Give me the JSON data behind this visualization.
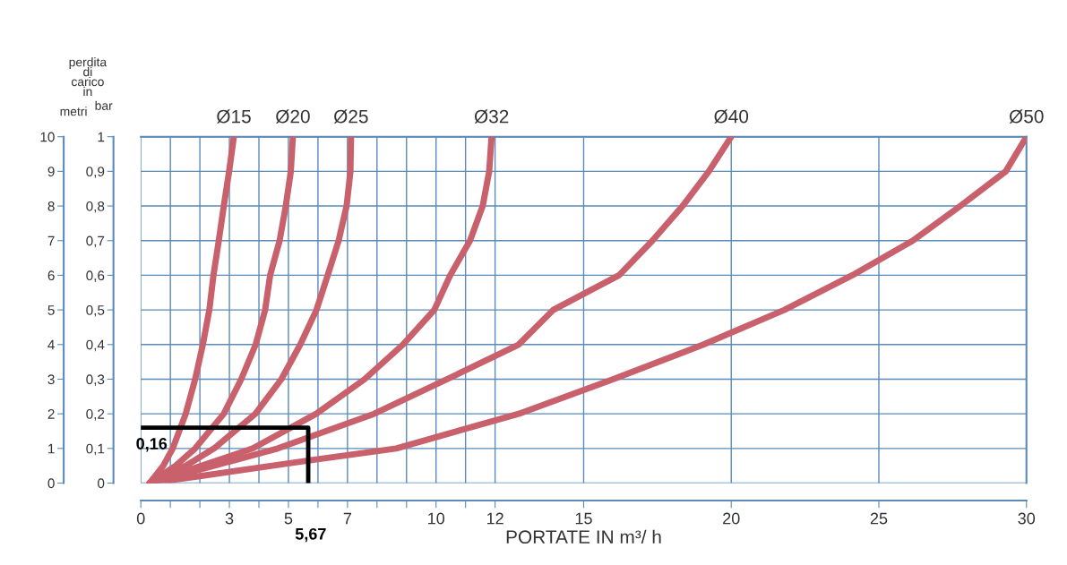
{
  "chart_data": {
    "type": "line",
    "xlabel": "PORTATE IN m³/ h",
    "ylabel": "bar",
    "annotations": [
      "perdita di carico in",
      "metri",
      {
        "text": "0,16",
        "x": 0,
        "y": 0.16
      },
      {
        "text": "5,67",
        "x": 5.67,
        "y": 0
      }
    ],
    "xlim": [
      0,
      30
    ],
    "xticks": [
      0,
      {
        "value": 1,
        "label": null
      },
      {
        "value": 2,
        "label": null
      },
      3,
      {
        "value": 4,
        "label": null
      },
      5,
      {
        "value": 6,
        "label": null
      },
      7,
      {
        "value": 8,
        "label": null
      },
      {
        "value": 9,
        "label": null
      },
      10,
      {
        "value": 11,
        "label": null
      },
      12,
      15,
      20,
      25,
      30
    ],
    "ylim": [
      0,
      1
    ],
    "yticks": [
      0,
      {
        "value": 0.1,
        "label": "0,1"
      },
      {
        "value": 0.2,
        "label": "0,2"
      },
      {
        "value": 0.3,
        "label": "0,3"
      },
      {
        "value": 0.4,
        "label": "0,4"
      },
      {
        "value": 0.5,
        "label": "0,5"
      },
      {
        "value": 0.6,
        "label": "0,6"
      },
      {
        "value": 0.7,
        "label": "0,7"
      },
      {
        "value": 0.8,
        "label": "0,8"
      },
      {
        "value": 0.9,
        "label": "0,9"
      },
      1
    ],
    "y2lim": [
      0,
      10
    ],
    "y2ticks": [
      0,
      1,
      2,
      3,
      4,
      5,
      6,
      7,
      8,
      9,
      10
    ],
    "grid": true,
    "series": [
      {
        "name": "Ø15",
        "color": "#c9616d",
        "x": [
          0.3,
          0.76,
          1.08,
          1.52,
          1.84,
          2.1,
          2.32,
          2.46,
          2.64,
          2.81,
          2.99,
          3.15
        ],
        "values": [
          0,
          0.05,
          0.1,
          0.2,
          0.3,
          0.4,
          0.5,
          0.6,
          0.7,
          0.8,
          0.9,
          1
        ]
      },
      {
        "name": "Ø20",
        "color": "#c9616d",
        "x": [
          0.3,
          1.18,
          1.84,
          2.81,
          3.4,
          3.89,
          4.21,
          4.38,
          4.7,
          4.91,
          5.08,
          5.15
        ],
        "values": [
          0,
          0.05,
          0.1,
          0.2,
          0.3,
          0.4,
          0.5,
          0.6,
          0.7,
          0.8,
          0.9,
          1
        ]
      },
      {
        "name": "Ø25",
        "color": "#c9616d",
        "x": [
          0.3,
          1.52,
          2.48,
          3.88,
          4.76,
          5.4,
          5.95,
          6.33,
          6.7,
          6.97,
          7.1,
          7.12
        ],
        "values": [
          0,
          0.05,
          0.1,
          0.2,
          0.3,
          0.4,
          0.5,
          0.6,
          0.7,
          0.8,
          0.9,
          1
        ]
      },
      {
        "name": "Ø32",
        "color": "#c9616d",
        "x": [
          0.3,
          2.06,
          3.79,
          5.94,
          7.58,
          8.88,
          9.94,
          10.48,
          11.15,
          11.58,
          11.8,
          11.88
        ],
        "values": [
          0,
          0.05,
          0.1,
          0.2,
          0.3,
          0.4,
          0.5,
          0.6,
          0.7,
          0.8,
          0.9,
          1
        ]
      },
      {
        "name": "Ø40",
        "color": "#c9616d",
        "x": [
          0.3,
          2.48,
          4.64,
          7.9,
          10.38,
          12.8,
          13.97,
          16.2,
          17.33,
          18.35,
          19.24,
          20
        ],
        "values": [
          0,
          0.05,
          0.1,
          0.2,
          0.3,
          0.4,
          0.5,
          0.6,
          0.7,
          0.8,
          0.9,
          1
        ]
      },
      {
        "name": "Ø50",
        "color": "#c9616d",
        "x": [
          0.3,
          2,
          5.67,
          8.65,
          12.8,
          16,
          19.06,
          21.8,
          24.1,
          26.15,
          27.76,
          29.3,
          30
        ],
        "values": [
          0,
          0.02,
          0.065,
          0.1,
          0.2,
          0.3,
          0.4,
          0.5,
          0.6,
          0.7,
          0.8,
          0.9,
          1
        ]
      },
      {
        "color": "#000000",
        "x": [
          0,
          5.67,
          5.67
        ],
        "values": [
          0.16,
          0.16,
          0
        ]
      }
    ]
  }
}
